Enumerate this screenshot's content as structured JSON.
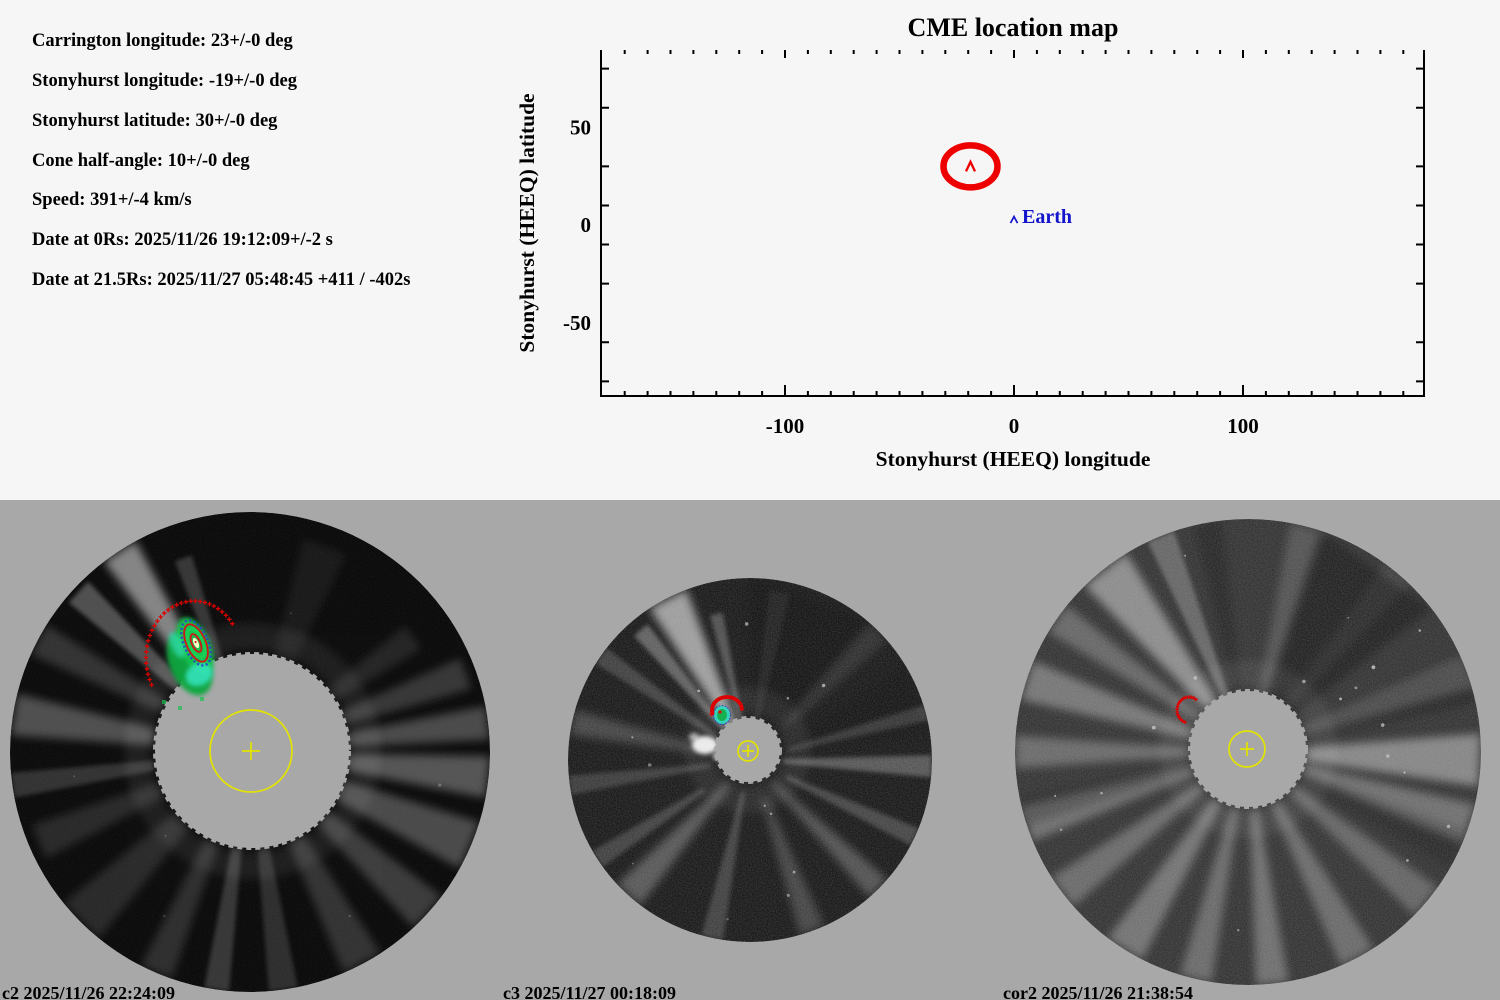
{
  "colors": {
    "page_bg": "#f6f6f6",
    "panel_bg": "#a8a8a8",
    "axis": "#000000",
    "cme_red": "#ee0000",
    "overlay_red": "#dd0000",
    "earth_blue": "#1414cc",
    "sun_yellow": "#e3e300"
  },
  "info_panel": {
    "lines": [
      "Carrington longitude: 23+/-0 deg",
      "Stonyhurst longitude: -19+/-0 deg",
      "Stonyhurst latitude: 30+/-0 deg",
      "Cone half-angle: 10+/-0 deg",
      "Speed: 391+/-4 km/s",
      "Date at 0Rs: 2025/11/26 19:12:09+/-2 s",
      "Date at 21.5Rs: 2025/11/27 05:48:45 +411 / -402s"
    ]
  },
  "chart_data": {
    "type": "scatter",
    "title": "CME location map",
    "xlabel": "Stonyhurst (HEEQ) longitude",
    "ylabel": "Stonyhurst (HEEQ) latitude",
    "xlim": [
      -180,
      180
    ],
    "ylim": [
      -88,
      90
    ],
    "x_major_ticks": [
      -100,
      0,
      100
    ],
    "y_major_ticks": [
      50,
      0,
      -50
    ],
    "x_minor_step": 10,
    "y_minor_ticks": [
      80,
      60,
      30,
      10,
      -10,
      -30,
      -60,
      -80
    ],
    "grid": false,
    "box_sides": "left-right-bottom",
    "tick_direction": "in",
    "points": [
      {
        "name": "CME",
        "stonyhurst_longitude_deg": -19,
        "stonyhurst_latitude_deg": 30,
        "cone_half_angle_deg": 10,
        "marker": "thick-red-ellipse-with-caret",
        "color": "#ee0000"
      },
      {
        "name": "Earth",
        "stonyhurst_longitude_deg": 0,
        "stonyhurst_latitude_deg": 2,
        "label": "Earth",
        "marker": "caret",
        "color": "#1414cc"
      }
    ]
  },
  "coronagraphs": [
    {
      "id": "c2",
      "label": "c2 2025/11/26 22:24:09",
      "overlays": [
        "cme-contour-blob",
        "red-cone-projection-arc",
        "occulter-disk",
        "yellow-sun-circle-and-cross"
      ]
    },
    {
      "id": "c3",
      "label": "c3 2025/11/27 00:18:09",
      "overlays": [
        "cme-contour-blob",
        "red-cone-projection-arc",
        "occulter-disk",
        "yellow-sun-circle-and-cross"
      ]
    },
    {
      "id": "cor2",
      "label": "cor2 2025/11/26 21:38:54",
      "overlays": [
        "red-cone-projection-arc",
        "occulter-disk",
        "yellow-sun-circle-and-cross"
      ]
    }
  ]
}
